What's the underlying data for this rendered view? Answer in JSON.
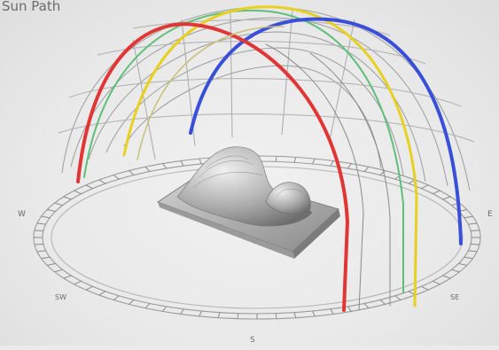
{
  "heading": "Sun Path",
  "compass": {
    "south": "S",
    "east": "E",
    "west": "W",
    "southeast": "SE",
    "southwest": "SW"
  },
  "colors": {
    "path_red": "#e03636",
    "path_yellow": "#e8d020",
    "path_blue": "#3a4fd8",
    "path_green": "#5fbf7a",
    "grid": "#9c9c9c",
    "model": "#a8a8a8"
  }
}
